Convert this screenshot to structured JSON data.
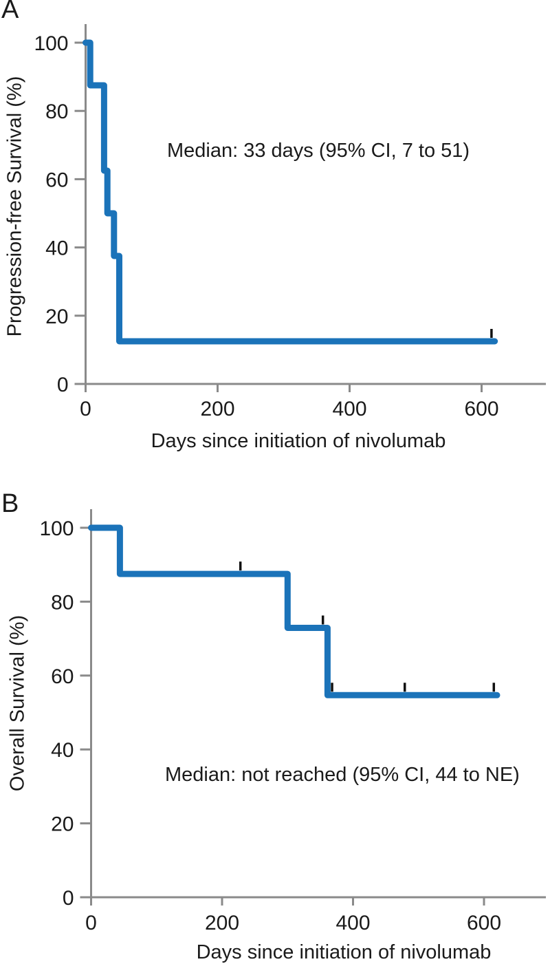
{
  "colors": {
    "curve": "#1B73B9",
    "axis": "#8A8A8A",
    "text": "#1A1A1A",
    "censor": "#111111",
    "background": "#FFFFFF"
  },
  "chart_data": [
    {
      "type": "line",
      "subtype": "kaplan-meier-step",
      "panel": "A",
      "ylabel": "Progression-free Survival (%)",
      "xlabel": "Days since initiation of nivolumab",
      "annotation": "Median: 33 days (95% CI, 7 to 51)",
      "x_ticks": [
        0,
        200,
        400,
        600
      ],
      "y_ticks": [
        0,
        20,
        40,
        60,
        80,
        100
      ],
      "xlim": [
        0,
        695
      ],
      "ylim": [
        0,
        100
      ],
      "grid": false,
      "legend": "none",
      "steps_day_percent": [
        [
          0,
          100
        ],
        [
          7,
          87.5
        ],
        [
          28,
          62.5
        ],
        [
          33,
          50
        ],
        [
          43,
          37.5
        ],
        [
          51,
          12.5
        ]
      ],
      "curve_end_day": 620,
      "censor_marks_day_percent": [
        [
          615,
          12.5
        ]
      ],
      "line_color": "#1B73B9"
    },
    {
      "type": "line",
      "subtype": "kaplan-meier-step",
      "panel": "B",
      "ylabel": "Overall Survival (%)",
      "xlabel": "Days since initiation of nivolumab",
      "annotation": "Median: not reached (95% CI, 44 to NE)",
      "x_ticks": [
        0,
        200,
        400,
        600
      ],
      "y_ticks": [
        0,
        20,
        40,
        60,
        80,
        100
      ],
      "xlim": [
        0,
        695
      ],
      "ylim": [
        0,
        100
      ],
      "grid": false,
      "legend": "none",
      "steps_day_percent": [
        [
          0,
          100
        ],
        [
          44,
          87.5
        ],
        [
          300,
          72.9
        ],
        [
          361,
          54.7
        ]
      ],
      "curve_end_day": 620,
      "censor_marks_day_percent": [
        [
          228,
          87.5
        ],
        [
          354,
          72.9
        ],
        [
          368,
          54.7
        ],
        [
          479,
          54.7
        ],
        [
          615,
          54.7
        ]
      ],
      "line_color": "#1B73B9"
    }
  ]
}
